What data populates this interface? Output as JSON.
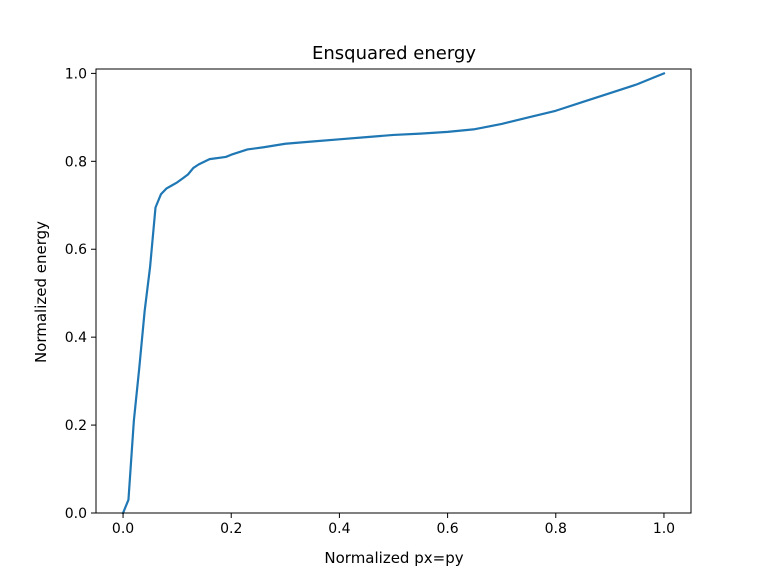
{
  "chart_data": {
    "type": "line",
    "title": "Ensquared energy",
    "xlabel": "Normalized px=py",
    "ylabel": "Normalized energy",
    "xlim": [
      -0.05,
      1.05
    ],
    "ylim": [
      0.0,
      1.01
    ],
    "xticks": [
      0.0,
      0.2,
      0.4,
      0.6,
      0.8,
      1.0
    ],
    "xtick_labels": [
      "0.0",
      "0.2",
      "0.4",
      "0.6",
      "0.8",
      "1.0"
    ],
    "yticks": [
      0.0,
      0.2,
      0.4,
      0.6,
      0.8,
      1.0
    ],
    "ytick_labels": [
      "0.0",
      "0.2",
      "0.4",
      "0.6",
      "0.8",
      "1.0"
    ],
    "grid": false,
    "legend": false,
    "series": [
      {
        "color": "#1f77b4",
        "x": [
          0.0,
          0.01,
          0.02,
          0.03,
          0.04,
          0.05,
          0.06,
          0.07,
          0.08,
          0.09,
          0.1,
          0.11,
          0.12,
          0.13,
          0.14,
          0.16,
          0.19,
          0.2,
          0.23,
          0.26,
          0.3,
          0.35,
          0.4,
          0.45,
          0.5,
          0.55,
          0.6,
          0.65,
          0.7,
          0.75,
          0.8,
          0.85,
          0.9,
          0.95,
          0.98,
          1.0
        ],
        "y": [
          0.0,
          0.03,
          0.21,
          0.33,
          0.46,
          0.56,
          0.695,
          0.725,
          0.738,
          0.745,
          0.752,
          0.761,
          0.77,
          0.785,
          0.793,
          0.805,
          0.81,
          0.815,
          0.827,
          0.832,
          0.84,
          0.845,
          0.85,
          0.855,
          0.86,
          0.863,
          0.867,
          0.873,
          0.885,
          0.9,
          0.915,
          0.935,
          0.955,
          0.975,
          0.99,
          1.0
        ]
      }
    ]
  }
}
